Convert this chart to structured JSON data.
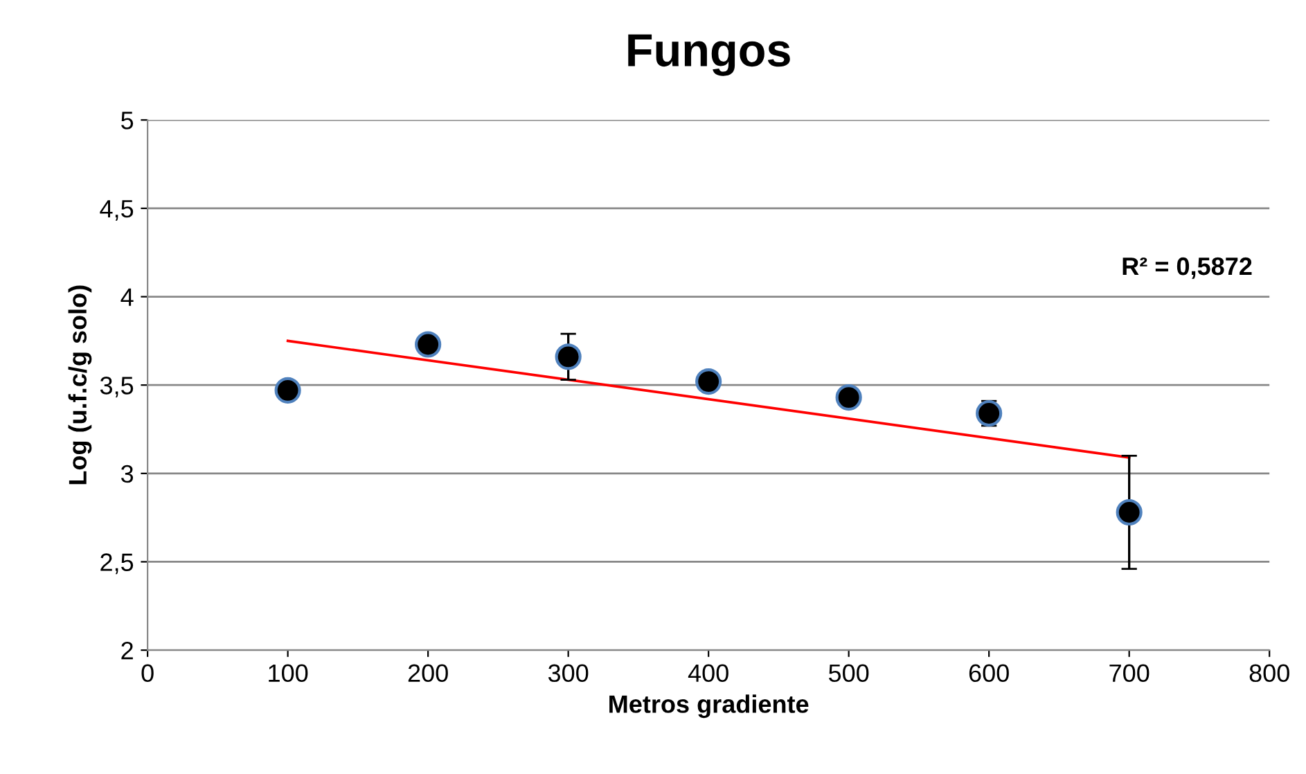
{
  "chart_data": {
    "type": "scatter",
    "title": "Fungos",
    "xlabel": "Metros gradiente",
    "ylabel": "Log (u.f.c/g solo)",
    "x": [
      100,
      200,
      300,
      400,
      500,
      600,
      700
    ],
    "series": [
      {
        "color": "#000000",
        "marker": "circle",
        "values": [
          3.47,
          3.73,
          3.66,
          3.52,
          3.43,
          3.34,
          2.78
        ],
        "errors": [
          null,
          null,
          0.13,
          null,
          null,
          0.07,
          0.32
        ]
      },
      {
        "type": "line",
        "marker": "none",
        "color": "#ff0000",
        "x": [
          100,
          700
        ],
        "values": [
          3.75,
          3.09
        ]
      }
    ],
    "annotations": [
      "R² = 0,5872"
    ],
    "xlim": [
      0,
      800
    ],
    "xticks": [
      0,
      100,
      200,
      300,
      400,
      500,
      600,
      700,
      800
    ],
    "ylim": [
      2,
      5
    ],
    "yticks": [
      2,
      {
        "value": 2.5,
        "label": "2,5"
      },
      3,
      {
        "value": 3.5,
        "label": "3,5"
      },
      4,
      {
        "value": 4.5,
        "label": "4,5"
      },
      5
    ],
    "grid": "y",
    "legend": false
  }
}
